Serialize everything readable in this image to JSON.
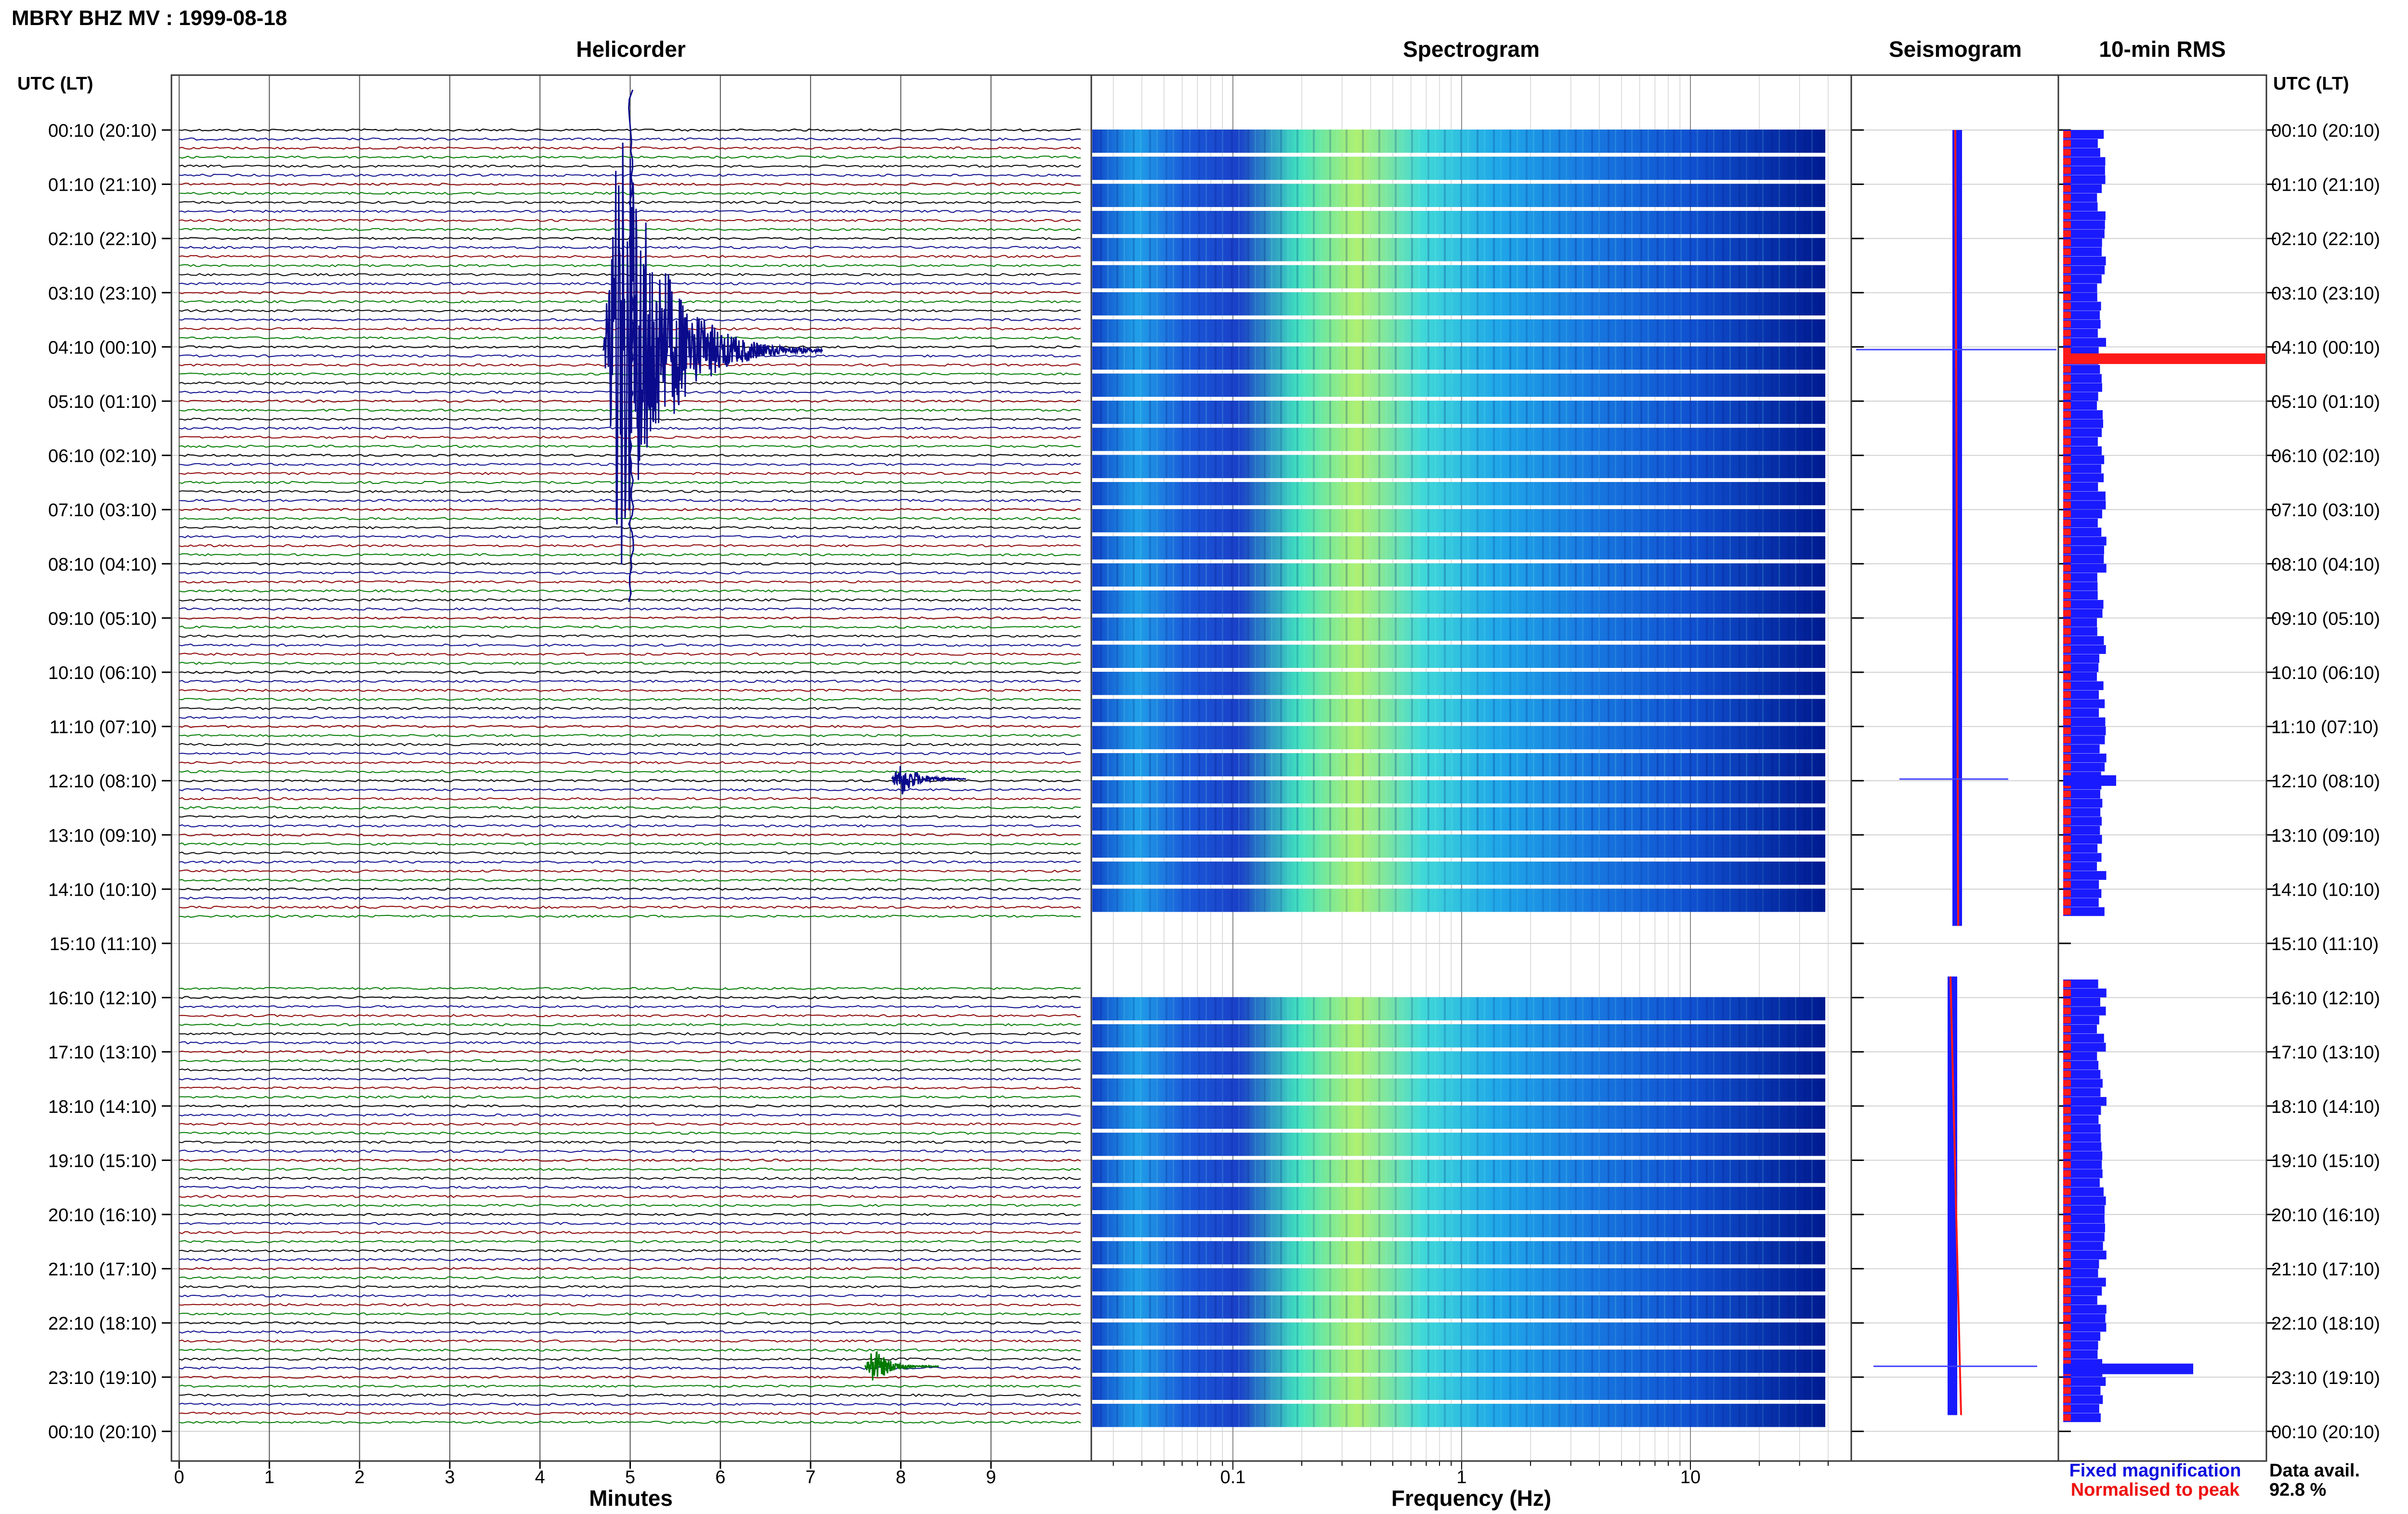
{
  "title": "MBRY BHZ MV : 1999-08-18",
  "panels": {
    "helicorder": "Helicorder",
    "spectrogram": "Spectrogram",
    "seismogram": "Seismogram",
    "rms": "10-min RMS"
  },
  "time_axis_label": "UTC (LT)",
  "time_labels": [
    "00:10 (20:10)",
    "01:10 (21:10)",
    "02:10 (22:10)",
    "03:10 (23:10)",
    "04:10 (00:10)",
    "05:10 (01:10)",
    "06:10 (02:10)",
    "07:10 (03:10)",
    "08:10 (04:10)",
    "09:10 (05:10)",
    "10:10 (06:10)",
    "11:10 (07:10)",
    "12:10 (08:10)",
    "13:10 (09:10)",
    "14:10 (10:10)",
    "15:10 (11:10)",
    "16:10 (12:10)",
    "17:10 (13:10)",
    "18:10 (14:10)",
    "19:10 (15:10)",
    "20:10 (16:10)",
    "21:10 (17:10)",
    "22:10 (18:10)",
    "23:10 (19:10)",
    "00:10 (20:10)"
  ],
  "minutes_axis": {
    "label": "Minutes",
    "ticks": [
      "0",
      "1",
      "2",
      "3",
      "4",
      "5",
      "6",
      "7",
      "8",
      "9"
    ]
  },
  "frequency_axis": {
    "label": "Frequency (Hz)",
    "ticks": [
      "0.1",
      "1",
      "10"
    ]
  },
  "legend": {
    "fixed": "Fixed magnification",
    "normalised": "Normalised to peak",
    "fixed_color": "#1010e0",
    "normalised_color": "#ee1111"
  },
  "availability": {
    "label": "Data avail.",
    "value": "92.8 %"
  },
  "colors": {
    "trace_cycle": [
      "#000000",
      "#0a0a8c",
      "#8b0000",
      "#007a00"
    ],
    "rms_fixed": "#1a1aff",
    "rms_norm": "#ff1a1a"
  },
  "chart_data": {
    "type": "helicorder",
    "date": "1999-08-18",
    "station": "MBRY BHZ MV",
    "minutes_range": [
      0,
      10
    ],
    "frequency_range_hz": [
      0.02,
      40
    ],
    "frequency_scale": "log",
    "data_gap_utc": [
      "14:40",
      "15:50"
    ],
    "events": [
      {
        "utc": "04:14",
        "minute": 4.7,
        "amplitude": "large"
      },
      {
        "utc": "12:08",
        "minute": 7.9,
        "amplitude": "medium"
      },
      {
        "utc": "22:58",
        "minute": 7.6,
        "amplitude": "medium"
      }
    ],
    "data_availability_percent": 92.8
  }
}
